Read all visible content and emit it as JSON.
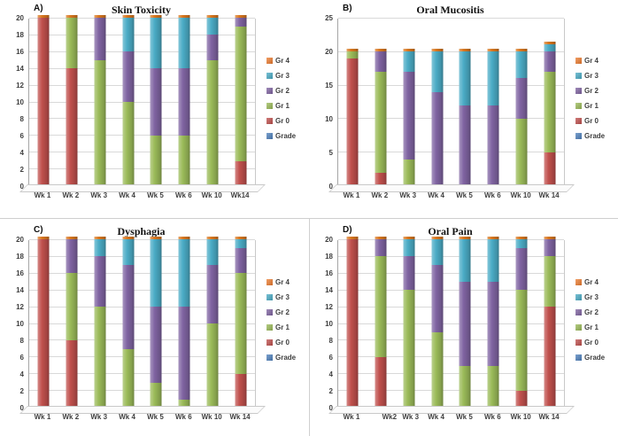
{
  "figure": {
    "description_colors": {
      "grid_line": "#d9d9d9",
      "axis_line": "#a6a6a6",
      "bar_cap": "#d9771f",
      "background": "#ffffff"
    }
  },
  "legend": {
    "items": [
      {
        "label": "Gr 4",
        "color": "#ED7D31"
      },
      {
        "label": "Gr 3",
        "color": "#4BACC6"
      },
      {
        "label": "Gr 2",
        "color": "#8064A2"
      },
      {
        "label": "Gr 1",
        "color": "#9BBB59"
      },
      {
        "label": "Gr 0",
        "color": "#C0504D"
      },
      {
        "label": "Grade",
        "color": "#4F81BD"
      }
    ]
  },
  "chart_data": [
    {
      "id": "A",
      "panel_label": "A)",
      "type": "bar",
      "stacked": true,
      "title": "Skin Toxicity",
      "categories": [
        "Wk 1",
        "Wk 2",
        "Wk 3",
        "Wk 4",
        "Wk 5",
        "Wk 6",
        "Wk 10",
        "Wk14"
      ],
      "ylim": [
        0,
        20
      ],
      "ytick_step": 2,
      "grid": true,
      "legend_position": "right",
      "series": [
        {
          "name": "Gr 0",
          "color": "#C0504D",
          "values": [
            20,
            14,
            0,
            0,
            0,
            0,
            0,
            3
          ]
        },
        {
          "name": "Gr 1",
          "color": "#9BBB59",
          "values": [
            0,
            6,
            15,
            10,
            6,
            6,
            15,
            16
          ]
        },
        {
          "name": "Gr 2",
          "color": "#8064A2",
          "values": [
            0,
            0,
            5,
            6,
            8,
            8,
            3,
            1
          ]
        },
        {
          "name": "Gr 3",
          "color": "#4BACC6",
          "values": [
            0,
            0,
            0,
            4,
            6,
            6,
            2,
            0
          ]
        },
        {
          "name": "Gr 4",
          "color": "#ED7D31",
          "values": [
            0,
            0,
            0,
            0,
            0,
            0,
            0,
            0
          ]
        }
      ]
    },
    {
      "id": "B",
      "panel_label": "B)",
      "type": "bar",
      "stacked": true,
      "title": "Oral Mucositis",
      "categories": [
        "Wk 1",
        "Wk 2",
        "Wk 3",
        "Wk 4",
        "Wk 5",
        "Wk 6",
        "Wk 10",
        "Wk 14"
      ],
      "ylim": [
        0,
        25
      ],
      "ytick_step": 5,
      "grid": true,
      "legend_position": "right",
      "series": [
        {
          "name": "Gr 0",
          "color": "#C0504D",
          "values": [
            19,
            2,
            0,
            0,
            0,
            0,
            0,
            5
          ]
        },
        {
          "name": "Gr 1",
          "color": "#9BBB59",
          "values": [
            1,
            15,
            4,
            0,
            0,
            0,
            10,
            12
          ]
        },
        {
          "name": "Gr 2",
          "color": "#8064A2",
          "values": [
            0,
            3,
            13,
            14,
            12,
            12,
            6,
            3
          ]
        },
        {
          "name": "Gr 3",
          "color": "#4BACC6",
          "values": [
            0,
            0,
            3,
            6,
            8,
            8,
            4,
            1
          ]
        },
        {
          "name": "Gr 4",
          "color": "#ED7D31",
          "values": [
            0,
            0,
            0,
            0,
            0,
            0,
            0,
            0
          ]
        }
      ]
    },
    {
      "id": "C",
      "panel_label": "C)",
      "type": "bar",
      "stacked": true,
      "title": "Dysphagia",
      "categories": [
        "Wk 1",
        "Wk 2",
        "Wk 3",
        "Wk 4",
        "Wk 5",
        "Wk 6",
        "Wk 10",
        "Wk 14"
      ],
      "ylim": [
        0,
        20
      ],
      "ytick_step": 2,
      "grid": true,
      "legend_position": "right",
      "series": [
        {
          "name": "Gr 0",
          "color": "#C0504D",
          "values": [
            20,
            8,
            0,
            0,
            0,
            0,
            0,
            4
          ]
        },
        {
          "name": "Gr 1",
          "color": "#9BBB59",
          "values": [
            0,
            8,
            12,
            7,
            3,
            1,
            10,
            12
          ]
        },
        {
          "name": "Gr 2",
          "color": "#8064A2",
          "values": [
            0,
            4,
            6,
            10,
            9,
            11,
            7,
            3
          ]
        },
        {
          "name": "Gr 3",
          "color": "#4BACC6",
          "values": [
            0,
            0,
            2,
            3,
            8,
            8,
            3,
            1
          ]
        },
        {
          "name": "Gr 4",
          "color": "#ED7D31",
          "values": [
            0,
            0,
            0,
            0,
            0,
            0,
            0,
            0
          ]
        }
      ]
    },
    {
      "id": "D",
      "panel_label": "D)",
      "type": "bar",
      "stacked": true,
      "title": "Oral Pain",
      "categories": [
        "Wk 1",
        "Wk2",
        "Wk 3",
        "Wk 4",
        "Wk 5",
        "Wk 6",
        "Wk 10",
        "Wk 14"
      ],
      "ylim": [
        0,
        20
      ],
      "ytick_step": 2,
      "grid": true,
      "legend_position": "right",
      "series": [
        {
          "name": "Gr 0",
          "color": "#C0504D",
          "values": [
            20,
            6,
            0,
            0,
            0,
            0,
            2,
            12
          ]
        },
        {
          "name": "Gr 1",
          "color": "#9BBB59",
          "values": [
            0,
            12,
            14,
            9,
            5,
            5,
            12,
            6
          ]
        },
        {
          "name": "Gr 2",
          "color": "#8064A2",
          "values": [
            0,
            2,
            4,
            8,
            10,
            10,
            5,
            2
          ]
        },
        {
          "name": "Gr 3",
          "color": "#4BACC6",
          "values": [
            0,
            0,
            2,
            3,
            5,
            5,
            1,
            0
          ]
        },
        {
          "name": "Gr 4",
          "color": "#ED7D31",
          "values": [
            0,
            0,
            0,
            0,
            0,
            0,
            0,
            0
          ]
        }
      ]
    }
  ]
}
